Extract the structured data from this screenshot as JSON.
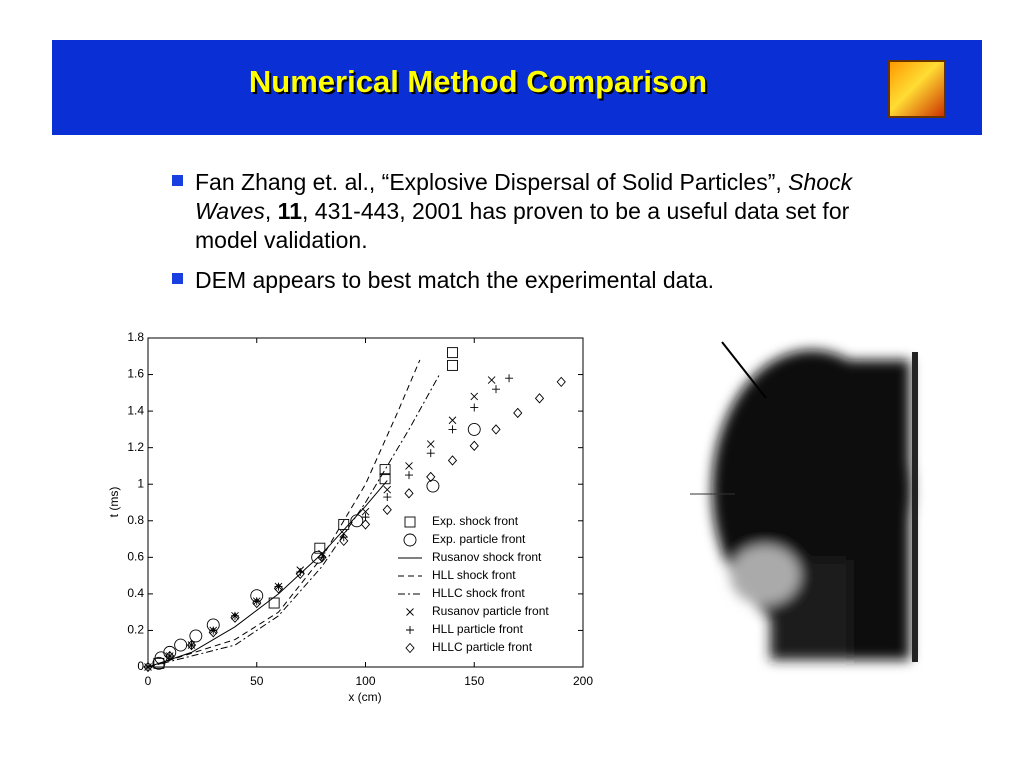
{
  "header": {
    "title": "Numerical Method Comparison"
  },
  "bullets": [
    [
      "Fan Zhang et. al., “Explosive Dispersal of Solid Particles”, ",
      "Shock Waves",
      ", ",
      "11",
      ", 431-443, 2001 has proven to be a useful data set for model validation."
    ],
    [
      "DEM appears to best match the experimental data."
    ]
  ],
  "chart_data": {
    "type": "line",
    "xlabel": "x (cm)",
    "ylabel": "t (ms)",
    "xlim": [
      0,
      200
    ],
    "ylim": [
      0,
      1.8
    ],
    "xticks": [
      0,
      50,
      100,
      150,
      200
    ],
    "yticks": [
      0,
      0.2,
      0.4,
      0.6,
      0.8,
      1,
      1.2,
      1.4,
      1.6,
      1.8
    ],
    "legend": "lower right",
    "series": [
      {
        "name": "Exp. shock front",
        "color": "#000000",
        "marker": "square",
        "line": "none",
        "x": [
          5,
          58,
          79,
          90,
          109,
          109,
          140,
          140
        ],
        "values": [
          0.02,
          0.35,
          0.65,
          0.78,
          1.08,
          1.03,
          1.72,
          1.65
        ]
      },
      {
        "name": "Exp. particle front",
        "color": "#000000",
        "marker": "circle",
        "line": "none",
        "x": [
          5,
          6,
          10,
          15,
          22,
          30,
          50,
          78,
          96,
          131,
          150
        ],
        "values": [
          0.02,
          0.05,
          0.08,
          0.12,
          0.17,
          0.23,
          0.39,
          0.6,
          0.8,
          0.99,
          1.3
        ]
      },
      {
        "name": "Rusanov shock front",
        "color": "#000000",
        "marker": "none",
        "line": "solid",
        "x": [
          0,
          20,
          40,
          60,
          80,
          100,
          110
        ],
        "values": [
          0,
          0.08,
          0.22,
          0.4,
          0.62,
          0.88,
          1.02
        ]
      },
      {
        "name": "HLL shock front",
        "color": "#000000",
        "marker": "none",
        "line": "dashed",
        "x": [
          0,
          40,
          60,
          80,
          100,
          115,
          125
        ],
        "values": [
          0,
          0.15,
          0.3,
          0.6,
          1.0,
          1.4,
          1.68
        ]
      },
      {
        "name": "HLLC shock front",
        "color": "#000000",
        "marker": "none",
        "line": "dashdot",
        "x": [
          0,
          40,
          60,
          80,
          100,
          120,
          134
        ],
        "values": [
          0,
          0.12,
          0.28,
          0.55,
          0.9,
          1.3,
          1.6
        ]
      },
      {
        "name": "Rusanov particle front",
        "color": "#000000",
        "marker": "x",
        "line": "none",
        "x": [
          0,
          10,
          20,
          30,
          40,
          50,
          60,
          70,
          80,
          90,
          100,
          110,
          120,
          130,
          140,
          150,
          158
        ],
        "values": [
          0,
          0.06,
          0.12,
          0.2,
          0.28,
          0.36,
          0.44,
          0.53,
          0.62,
          0.73,
          0.85,
          0.97,
          1.1,
          1.22,
          1.35,
          1.48,
          1.57
        ]
      },
      {
        "name": "HLL particle front",
        "color": "#000000",
        "marker": "plus",
        "line": "none",
        "x": [
          0,
          10,
          20,
          30,
          40,
          50,
          60,
          70,
          80,
          90,
          100,
          110,
          120,
          130,
          140,
          150,
          160,
          166
        ],
        "values": [
          0,
          0.06,
          0.12,
          0.2,
          0.28,
          0.36,
          0.44,
          0.52,
          0.6,
          0.71,
          0.82,
          0.93,
          1.05,
          1.17,
          1.3,
          1.42,
          1.52,
          1.58
        ]
      },
      {
        "name": "HLLC particle front",
        "color": "#000000",
        "marker": "diamond",
        "line": "none",
        "x": [
          0,
          10,
          20,
          30,
          40,
          50,
          60,
          70,
          80,
          90,
          100,
          110,
          120,
          130,
          140,
          150,
          160,
          170,
          180,
          190
        ],
        "values": [
          0,
          0.06,
          0.12,
          0.19,
          0.27,
          0.35,
          0.43,
          0.51,
          0.6,
          0.69,
          0.78,
          0.86,
          0.95,
          1.04,
          1.13,
          1.21,
          1.3,
          1.39,
          1.47,
          1.56
        ]
      }
    ]
  }
}
